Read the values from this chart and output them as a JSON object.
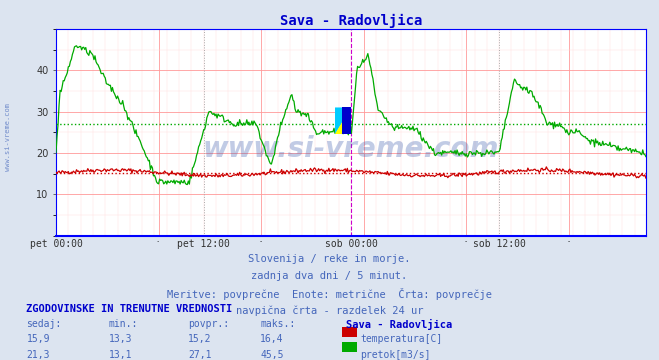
{
  "title": "Sava - Radovljica",
  "title_color": "#0000cc",
  "bg_color": "#dce4f0",
  "plot_bg_color": "#ffffff",
  "xlabel_ticks": [
    "pet 00:00",
    "pet 12:00",
    "sob 00:00",
    "sob 12:00"
  ],
  "xlabel_tick_positions": [
    0,
    144,
    288,
    432
  ],
  "total_points": 576,
  "ylim": [
    0,
    50
  ],
  "yticks": [
    10,
    20,
    30,
    40
  ],
  "grid_major_color": "#ff9999",
  "grid_minor_color": "#ffdddd",
  "temp_color": "#cc0000",
  "flow_color": "#00aa00",
  "temp_avg": 15.2,
  "flow_avg": 27.1,
  "watermark": "www.si-vreme.com",
  "watermark_color": "#3355aa",
  "watermark_alpha": 0.3,
  "sidebar_text": "www.si-vreme.com",
  "sidebar_color": "#4466bb",
  "footer_lines": [
    "Slovenija / reke in morje.",
    "zadnja dva dni / 5 minut.",
    "Meritve: povprečne  Enote: metrične  Črta: povprečje",
    "navpična črta - razdelek 24 ur"
  ],
  "footer_color": "#4466bb",
  "footer_fontsize": 7.5,
  "table_header": "ZGODOVINSKE IN TRENUTNE VREDNOSTI",
  "table_header_color": "#0000cc",
  "col_headers": [
    "sedaj:",
    "min.:",
    "povpr.:",
    "maks.:"
  ],
  "col_header_color": "#4466bb",
  "temp_values": [
    "15,9",
    "13,3",
    "15,2",
    "16,4"
  ],
  "flow_values": [
    "21,3",
    "13,1",
    "27,1",
    "45,5"
  ],
  "value_color": "#4466bb",
  "legend_label_temp": "temperatura[C]",
  "legend_label_flow": "pretok[m3/s]",
  "legend_title": "Sava - Radovljica",
  "legend_title_color": "#0000cc",
  "legend_color": "#4466bb",
  "vline_color": "#cc00cc",
  "border_color": "#0000ff",
  "axis_bottom_color": "#0000ff",
  "vline_dashed_color": "#aaaaaa",
  "logo_cyan": "#00ccff",
  "logo_yellow": "#ffff00",
  "logo_blue": "#0000cc"
}
